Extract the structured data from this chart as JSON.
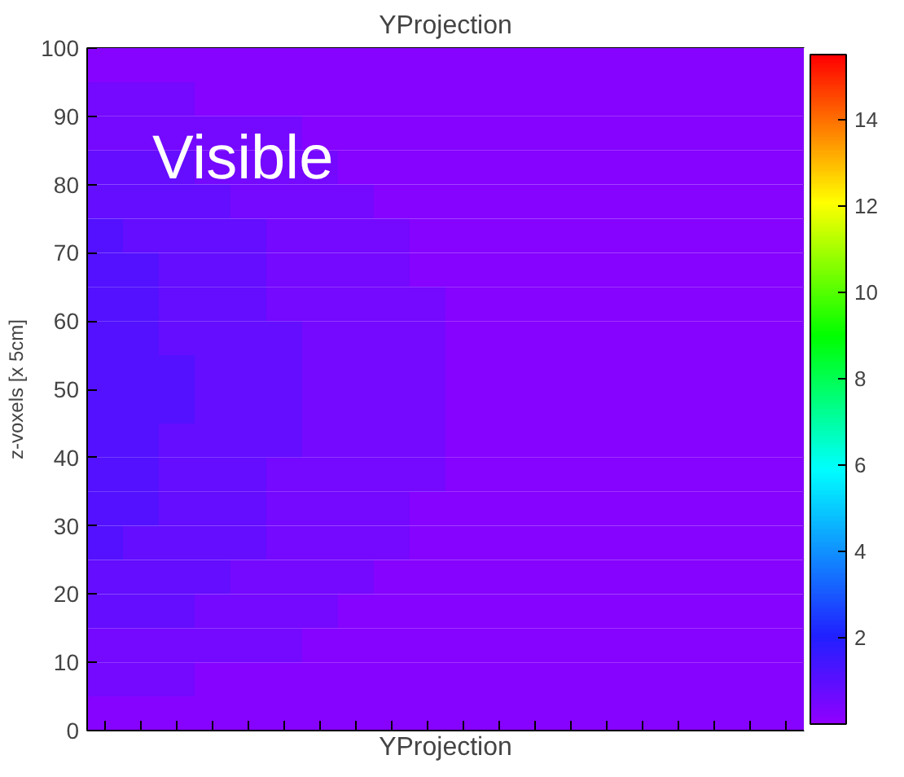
{
  "chart_data": {
    "type": "heatmap",
    "title": "YProjection",
    "xlabel": "YProjection",
    "ylabel": "z-voxels [x 5cm]",
    "annotations": [
      "Visible"
    ],
    "categories": [
      null,
      null,
      null,
      null,
      null,
      null,
      null,
      null,
      null,
      null,
      null,
      null,
      null,
      null,
      null,
      null,
      null,
      null,
      null,
      null
    ],
    "ylim": [
      0,
      100
    ],
    "yticks": [
      0,
      10,
      20,
      30,
      40,
      50,
      60,
      70,
      80,
      90,
      100
    ],
    "clim": [
      0,
      15.5
    ],
    "cticks": [
      2,
      4,
      6,
      8,
      10,
      12,
      14
    ],
    "cells": [
      [
        0.2,
        0.2,
        0.2,
        0.2,
        0.2,
        0.2,
        0.2,
        0.2,
        0.2,
        0.2,
        0.2,
        0.2,
        0.2,
        0.2,
        0.2,
        0.2,
        0.2,
        0.2,
        0.2,
        0.2
      ],
      [
        0.5,
        0.5,
        0.5,
        0.2,
        0.2,
        0.2,
        0.2,
        0.2,
        0.2,
        0.2,
        0.2,
        0.2,
        0.2,
        0.2,
        0.2,
        0.2,
        0.2,
        0.2,
        0.2,
        0.2
      ],
      [
        0.5,
        0.5,
        0.5,
        0.5,
        0.5,
        0.5,
        0.2,
        0.2,
        0.2,
        0.2,
        0.2,
        0.2,
        0.2,
        0.2,
        0.2,
        0.2,
        0.2,
        0.2,
        0.2,
        0.2
      ],
      [
        0.8,
        0.8,
        0.8,
        0.5,
        0.5,
        0.5,
        0.5,
        0.2,
        0.2,
        0.2,
        0.2,
        0.2,
        0.2,
        0.2,
        0.2,
        0.2,
        0.2,
        0.2,
        0.2,
        0.2
      ],
      [
        0.8,
        0.8,
        0.8,
        0.8,
        0.5,
        0.5,
        0.5,
        0.5,
        0.2,
        0.2,
        0.2,
        0.2,
        0.2,
        0.2,
        0.2,
        0.2,
        0.2,
        0.2,
        0.2,
        0.2
      ],
      [
        1.1,
        0.8,
        0.8,
        0.8,
        0.8,
        0.5,
        0.5,
        0.5,
        0.5,
        0.2,
        0.2,
        0.2,
        0.2,
        0.2,
        0.2,
        0.2,
        0.2,
        0.2,
        0.2,
        0.2
      ],
      [
        1.1,
        1.1,
        0.8,
        0.8,
        0.8,
        0.5,
        0.5,
        0.5,
        0.5,
        0.2,
        0.2,
        0.2,
        0.2,
        0.2,
        0.2,
        0.2,
        0.2,
        0.2,
        0.2,
        0.2
      ],
      [
        1.1,
        1.1,
        0.8,
        0.8,
        0.8,
        0.5,
        0.5,
        0.5,
        0.5,
        0.5,
        0.2,
        0.2,
        0.2,
        0.2,
        0.2,
        0.2,
        0.2,
        0.2,
        0.2,
        0.2
      ],
      [
        1.1,
        1.1,
        0.8,
        0.8,
        0.8,
        0.8,
        0.5,
        0.5,
        0.5,
        0.5,
        0.2,
        0.2,
        0.2,
        0.2,
        0.2,
        0.2,
        0.2,
        0.2,
        0.2,
        0.2
      ],
      [
        1.1,
        1.1,
        1.1,
        0.8,
        0.8,
        0.8,
        0.5,
        0.5,
        0.5,
        0.5,
        0.2,
        0.2,
        0.2,
        0.2,
        0.2,
        0.2,
        0.2,
        0.2,
        0.2,
        0.2
      ],
      [
        1.1,
        1.1,
        1.1,
        0.8,
        0.8,
        0.8,
        0.5,
        0.5,
        0.5,
        0.5,
        0.2,
        0.2,
        0.2,
        0.2,
        0.2,
        0.2,
        0.2,
        0.2,
        0.2,
        0.2
      ],
      [
        1.1,
        1.1,
        0.8,
        0.8,
        0.8,
        0.8,
        0.5,
        0.5,
        0.5,
        0.5,
        0.2,
        0.2,
        0.2,
        0.2,
        0.2,
        0.2,
        0.2,
        0.2,
        0.2,
        0.2
      ],
      [
        1.1,
        1.1,
        0.8,
        0.8,
        0.8,
        0.5,
        0.5,
        0.5,
        0.5,
        0.5,
        0.2,
        0.2,
        0.2,
        0.2,
        0.2,
        0.2,
        0.2,
        0.2,
        0.2,
        0.2
      ],
      [
        1.1,
        1.1,
        0.8,
        0.8,
        0.8,
        0.5,
        0.5,
        0.5,
        0.5,
        0.2,
        0.2,
        0.2,
        0.2,
        0.2,
        0.2,
        0.2,
        0.2,
        0.2,
        0.2,
        0.2
      ],
      [
        1.1,
        0.8,
        0.8,
        0.8,
        0.8,
        0.5,
        0.5,
        0.5,
        0.5,
        0.2,
        0.2,
        0.2,
        0.2,
        0.2,
        0.2,
        0.2,
        0.2,
        0.2,
        0.2,
        0.2
      ],
      [
        0.8,
        0.8,
        0.8,
        0.8,
        0.5,
        0.5,
        0.5,
        0.5,
        0.2,
        0.2,
        0.2,
        0.2,
        0.2,
        0.2,
        0.2,
        0.2,
        0.2,
        0.2,
        0.2,
        0.2
      ],
      [
        0.8,
        0.8,
        0.8,
        0.5,
        0.5,
        0.5,
        0.5,
        0.2,
        0.2,
        0.2,
        0.2,
        0.2,
        0.2,
        0.2,
        0.2,
        0.2,
        0.2,
        0.2,
        0.2,
        0.2
      ],
      [
        0.5,
        0.5,
        0.5,
        0.5,
        0.5,
        0.5,
        0.2,
        0.2,
        0.2,
        0.2,
        0.2,
        0.2,
        0.2,
        0.2,
        0.2,
        0.2,
        0.2,
        0.2,
        0.2,
        0.2
      ],
      [
        0.5,
        0.5,
        0.5,
        0.2,
        0.2,
        0.2,
        0.2,
        0.2,
        0.2,
        0.2,
        0.2,
        0.2,
        0.2,
        0.2,
        0.2,
        0.2,
        0.2,
        0.2,
        0.2,
        0.2
      ],
      [
        0.2,
        0.2,
        0.2,
        0.2,
        0.2,
        0.2,
        0.2,
        0.2,
        0.2,
        0.2,
        0.2,
        0.2,
        0.2,
        0.2,
        0.2,
        0.2,
        0.2,
        0.2,
        0.2,
        0.2
      ]
    ]
  }
}
